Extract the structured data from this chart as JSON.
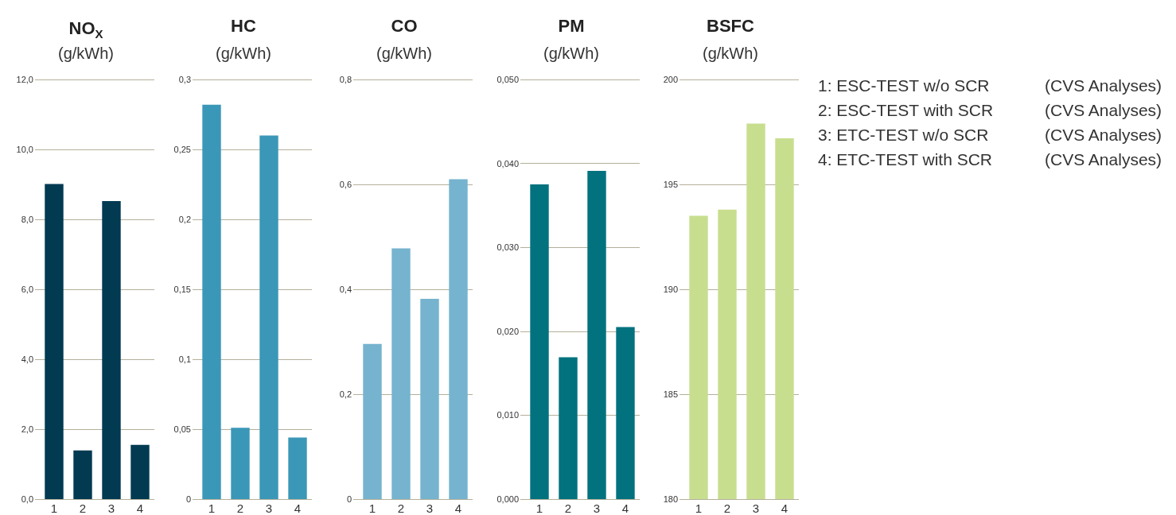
{
  "chart_data": [
    {
      "type": "bar",
      "title": "NO$_{X}$",
      "subtitle": "(g/kWh)",
      "categories": [
        "1",
        "2",
        "3",
        "4"
      ],
      "values": [
        9.01,
        1.39,
        8.52,
        1.55
      ],
      "color": "#023a52",
      "ylim": [
        0,
        12
      ],
      "yticks": [
        {
          "value": 0,
          "label": "0,0"
        },
        {
          "value": 2,
          "label": "2,0"
        },
        {
          "value": 4,
          "label": "4,0"
        },
        {
          "value": 6,
          "label": "6,0"
        },
        {
          "value": 8,
          "label": "8,0"
        },
        {
          "value": 10,
          "label": "10,0"
        },
        {
          "value": 12,
          "label": "12,0"
        }
      ],
      "grid": "y"
    },
    {
      "type": "bar",
      "title": "HC",
      "subtitle": "(g/kWh)",
      "categories": [
        "1",
        "2",
        "3",
        "4"
      ],
      "values": [
        0.282,
        0.051,
        0.26,
        0.044
      ],
      "color": "#3b97b8",
      "ylim": [
        0,
        0.3
      ],
      "yticks": [
        0,
        {
          "value": 0.05,
          "label": "0,05"
        },
        {
          "value": 0.1,
          "label": "0,1"
        },
        {
          "value": 0.15,
          "label": "0,15"
        },
        {
          "value": 0.2,
          "label": "0,2"
        },
        {
          "value": 0.25,
          "label": "0,25"
        },
        {
          "value": 0.3,
          "label": "0,3"
        }
      ],
      "grid": "y"
    },
    {
      "type": "bar",
      "title": "CO",
      "subtitle": "(g/kWh)",
      "categories": [
        "1",
        "2",
        "3",
        "4"
      ],
      "values": [
        0.296,
        0.478,
        0.382,
        0.61
      ],
      "color": "#76b3cf",
      "ylim": [
        0,
        0.8
      ],
      "yticks": [
        0,
        {
          "value": 0.2,
          "label": "0,2"
        },
        {
          "value": 0.4,
          "label": "0,4"
        },
        {
          "value": 0.6,
          "label": "0,6"
        },
        {
          "value": 0.8,
          "label": "0,8"
        }
      ],
      "grid": "y"
    },
    {
      "type": "bar",
      "title": "PM",
      "subtitle": "(g/kWh)",
      "categories": [
        "1",
        "2",
        "3",
        "4"
      ],
      "values": [
        0.0375,
        0.0169,
        0.0391,
        0.0205
      ],
      "color": "#02727e",
      "ylim": [
        0,
        0.05
      ],
      "yticks": [
        {
          "value": 0,
          "label": "0,000"
        },
        {
          "value": 0.01,
          "label": "0,010"
        },
        {
          "value": 0.02,
          "label": "0,020"
        },
        {
          "value": 0.03,
          "label": "0,030"
        },
        {
          "value": 0.04,
          "label": "0,040"
        },
        {
          "value": 0.05,
          "label": "0,050"
        }
      ],
      "grid": "y"
    },
    {
      "type": "bar",
      "title": "BSFC",
      "subtitle": "(g/kWh)",
      "categories": [
        "1",
        "2",
        "3",
        "4"
      ],
      "values": [
        193.5,
        193.8,
        197.9,
        197.2
      ],
      "color": "#c8de8f",
      "ylim": [
        180,
        200
      ],
      "yticks": [
        180,
        185,
        190,
        195,
        200
      ],
      "grid": "y"
    },
    {
      "type": "other",
      "annotations": [
        "1: ESC-TEST w/o SCR",
        "(CVS Analyses)",
        "2: ESC-TEST with SCR",
        "(CVS Analyses)",
        "3: ETC-TEST w/o SCR",
        "(CVS Analyses)",
        "4: ETC-TEST with SCR",
        "(CVS Analyses)"
      ]
    }
  ]
}
